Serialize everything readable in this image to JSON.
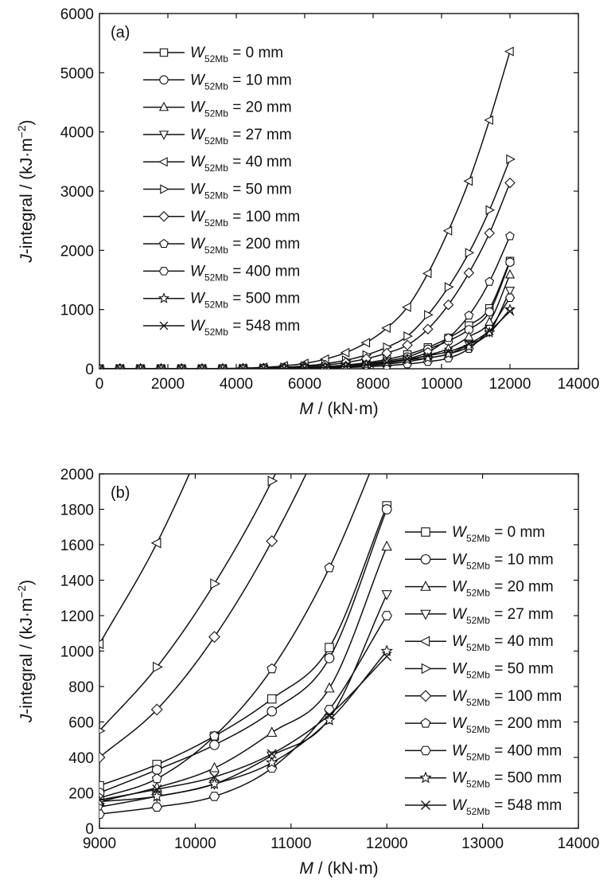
{
  "chart_data": [
    {
      "type": "line",
      "panel_label": "(a)",
      "xlabel_var": "M",
      "xlabel_rest": " / (kN·m)",
      "ylabel_var": "J",
      "ylabel_rest": "-integral / (kJ·m",
      "ylabel_sup": "−2",
      "ylabel_close": ")",
      "xlim": [
        0,
        14000
      ],
      "ylim": [
        0,
        6000
      ],
      "xticks": [
        "0",
        "2000",
        "4000",
        "6000",
        "8000",
        "10000",
        "12000",
        "14000"
      ],
      "yticks": [
        "0",
        "1000",
        "2000",
        "3000",
        "4000",
        "5000",
        "6000"
      ],
      "legend_position": "top-left",
      "series": [
        {
          "name_var": "W",
          "name_sub": "52Mb",
          "name_rest": " = 0 mm",
          "marker": "square",
          "x": [
            9000,
            9600,
            10200,
            10800,
            11400,
            12000
          ],
          "y": [
            240,
            360,
            520,
            730,
            1020,
            1820
          ]
        },
        {
          "name_var": "W",
          "name_sub": "52Mb",
          "name_rest": " = 10 mm",
          "marker": "circle",
          "x": [
            9000,
            9600,
            10200,
            10800,
            11400,
            12000
          ],
          "y": [
            200,
            330,
            470,
            660,
            960,
            1800
          ]
        },
        {
          "name_var": "W",
          "name_sub": "52Mb",
          "name_rest": " = 20 mm",
          "marker": "triangle-up",
          "x": [
            9000,
            9600,
            10200,
            10800,
            11400,
            12000
          ],
          "y": [
            150,
            230,
            340,
            540,
            790,
            1590
          ]
        },
        {
          "name_var": "W",
          "name_sub": "52Mb",
          "name_rest": " = 27 mm",
          "marker": "triangle-down",
          "x": [
            9000,
            9600,
            10200,
            10800,
            11400,
            12000
          ],
          "y": [
            120,
            180,
            250,
            410,
            620,
            1320
          ]
        },
        {
          "name_var": "W",
          "name_sub": "52Mb",
          "name_rest": " = 40 mm",
          "marker": "triangle-left",
          "x": [
            9000,
            9600,
            10200,
            10800,
            11400,
            12000
          ],
          "y": [
            1040,
            1610,
            2330,
            3170,
            4200,
            5360
          ]
        },
        {
          "name_var": "W",
          "name_sub": "52Mb",
          "name_rest": " = 50 mm",
          "marker": "triangle-right",
          "x": [
            9000,
            9600,
            10200,
            10800,
            11400,
            12000
          ],
          "y": [
            550,
            910,
            1380,
            1960,
            2680,
            3540
          ]
        },
        {
          "name_var": "W",
          "name_sub": "52Mb",
          "name_rest": " = 100 mm",
          "marker": "diamond",
          "x": [
            9000,
            9600,
            10200,
            10800,
            11400,
            12000
          ],
          "y": [
            400,
            670,
            1080,
            1620,
            2290,
            3140
          ]
        },
        {
          "name_var": "W",
          "name_sub": "52Mb",
          "name_rest": " = 200 mm",
          "marker": "pentagon",
          "x": [
            9000,
            9600,
            10200,
            10800,
            11400,
            12000
          ],
          "y": [
            170,
            280,
            520,
            900,
            1470,
            2240
          ]
        },
        {
          "name_var": "W",
          "name_sub": "52Mb",
          "name_rest": " = 400 mm",
          "marker": "hexagon",
          "x": [
            9000,
            9600,
            10200,
            10800,
            11400,
            12000
          ],
          "y": [
            80,
            120,
            180,
            340,
            670,
            1200
          ]
        },
        {
          "name_var": "W",
          "name_sub": "52Mb",
          "name_rest": " = 500 mm",
          "marker": "star",
          "x": [
            9000,
            9600,
            10200,
            10800,
            11400,
            12000
          ],
          "y": [
            150,
            180,
            250,
            370,
            610,
            1000
          ]
        },
        {
          "name_var": "W",
          "name_sub": "52Mb",
          "name_rest": " = 548 mm",
          "marker": "cross",
          "x": [
            9000,
            9600,
            10200,
            10800,
            11400,
            12000
          ],
          "y": [
            160,
            220,
            290,
            420,
            640,
            970
          ]
        }
      ]
    },
    {
      "type": "line",
      "panel_label": "(b)",
      "xlabel_var": "M",
      "xlabel_rest": " / (kN·m)",
      "ylabel_var": "J",
      "ylabel_rest": "-integral / (kJ·m",
      "ylabel_sup": "−2",
      "ylabel_close": ")",
      "xlim": [
        9000,
        14000
      ],
      "ylim": [
        0,
        2000
      ],
      "xticks": [
        "9000",
        "10000",
        "11000",
        "12000",
        "13000",
        "14000"
      ],
      "yticks": [
        "0",
        "200",
        "400",
        "600",
        "800",
        "1000",
        "1200",
        "1400",
        "1600",
        "1800",
        "2000"
      ],
      "legend_position": "right",
      "note": "same series as panel (a), shown zoomed"
    }
  ]
}
